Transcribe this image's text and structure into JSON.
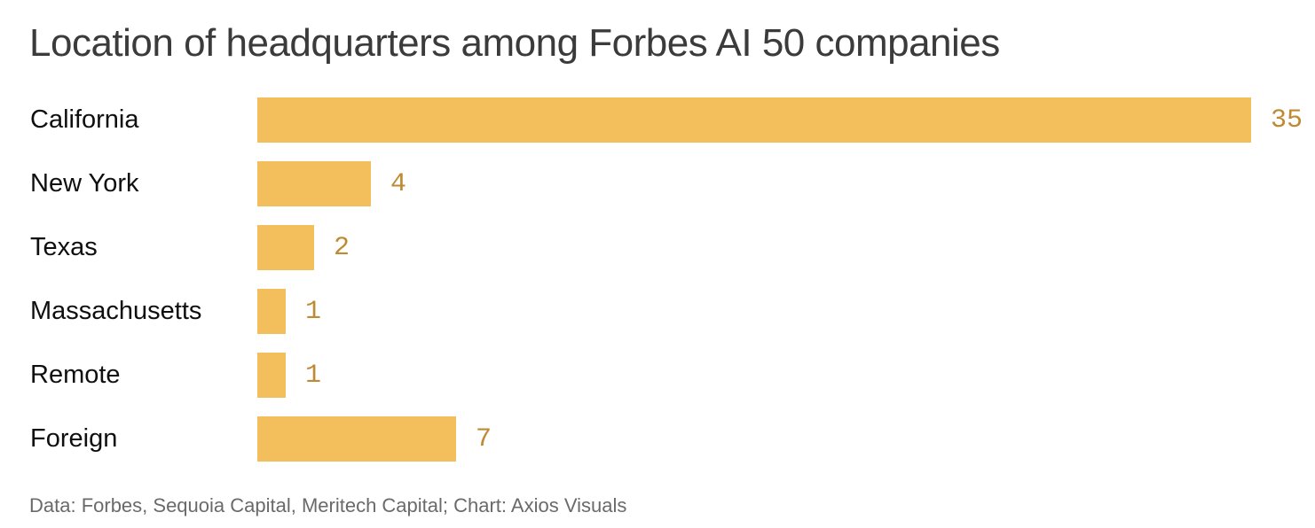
{
  "title": "Location of headquarters among Forbes AI 50 companies",
  "footer": "Data: Forbes, Sequoia Capital, Meritech Capital; Chart: Axios Visuals",
  "colors": {
    "bar": "#F3BE5C",
    "value_label": "#BE8A33",
    "title_text": "#3B3B3B",
    "category_text": "#0F0F0F",
    "footer_text": "#6A6A6A",
    "background": "#FFFFFF"
  },
  "chart_data": {
    "type": "bar",
    "orientation": "horizontal",
    "title": "Location of headquarters among Forbes AI 50 companies",
    "categories": [
      "California",
      "New York",
      "Texas",
      "Massachusetts",
      "Remote",
      "Foreign"
    ],
    "values": [
      35,
      4,
      2,
      1,
      1,
      7
    ],
    "xlabel": "",
    "ylabel": "",
    "xlim": [
      0,
      35
    ],
    "value_labels_shown": true,
    "legend": false,
    "grid": false,
    "source_note": "Data: Forbes, Sequoia Capital, Meritech Capital; Chart: Axios Visuals"
  }
}
